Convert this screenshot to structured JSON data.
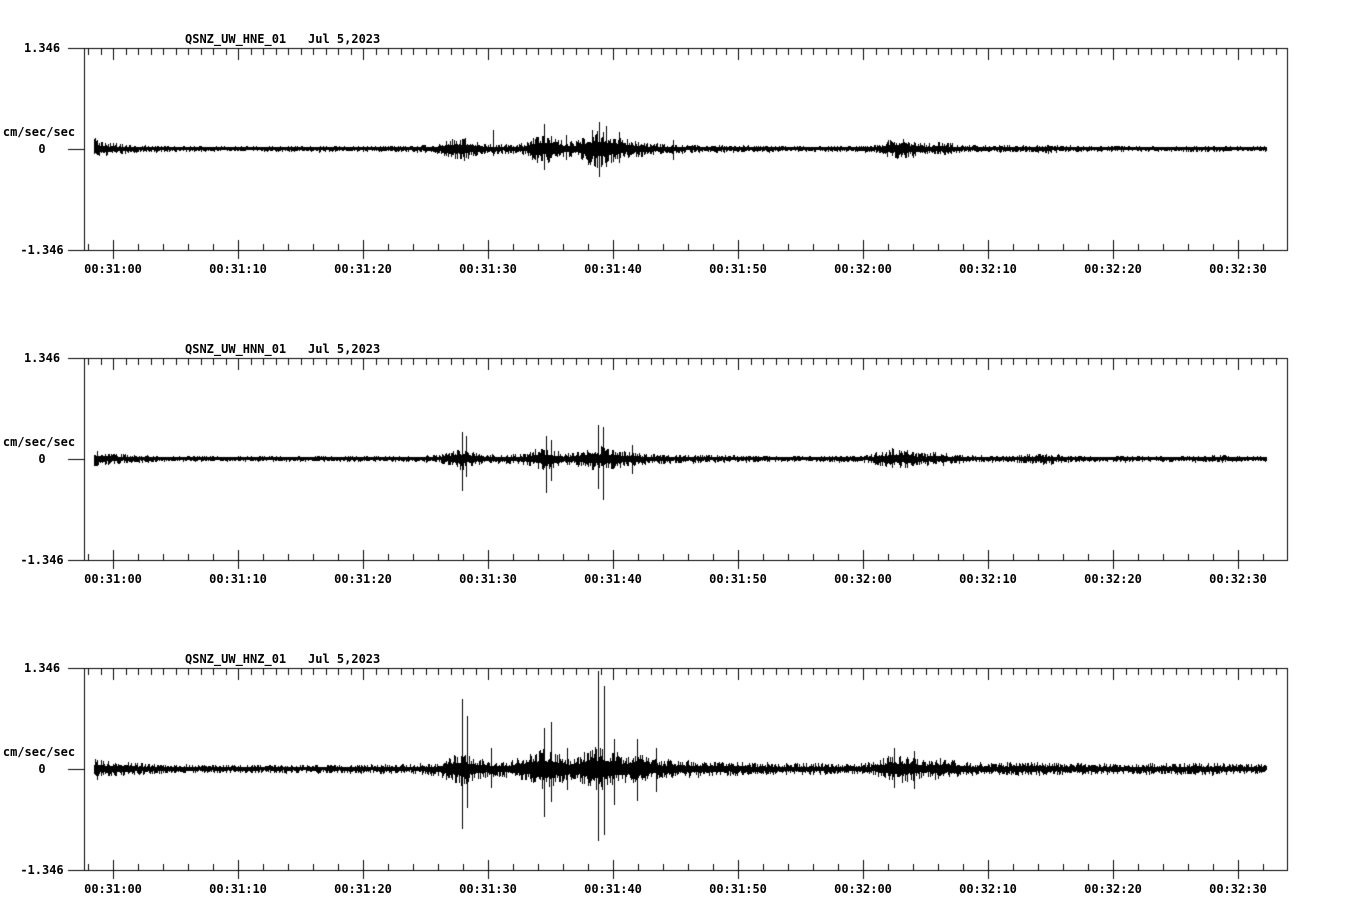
{
  "colors": {
    "ink": "#000000",
    "paper": "#ffffff"
  },
  "chart_data": [
    {
      "type": "line",
      "subtype": "seismogram",
      "title": "QSNZ_UW_HNE_01",
      "date_label": "Jul 5,2023",
      "ylabel_unit": "cm/sec/sec",
      "y_tick_labels": [
        "1.346",
        "0",
        "-1.346"
      ],
      "ylim": [
        -1.346,
        1.346
      ],
      "x_tick_labels": [
        "00:31:00",
        "00:31:10",
        "00:31:20",
        "00:31:30",
        "00:31:40",
        "00:31:50",
        "00:32:00",
        "00:32:10",
        "00:32:20",
        "00:32:30"
      ],
      "x_major_ticks_sec": [
        0,
        10,
        20,
        30,
        40,
        50,
        60,
        70,
        80,
        90
      ],
      "x_minor_step_top_sec": 1,
      "x_minor_step_bottom_sec": 2,
      "x_axis_range_sec": [
        -2.3,
        93.9
      ],
      "trace_time_range_sec": [
        -1.5,
        92.2
      ],
      "grid": false,
      "envelope_cm_s2": [
        [
          -1.5,
          0.14
        ],
        [
          -1.0,
          0.1
        ],
        [
          0,
          0.08
        ],
        [
          2,
          0.05
        ],
        [
          4,
          0.04
        ],
        [
          8,
          0.035
        ],
        [
          14,
          0.04
        ],
        [
          20,
          0.04
        ],
        [
          24,
          0.045
        ],
        [
          26,
          0.06
        ],
        [
          26.8,
          0.13
        ],
        [
          28,
          0.15
        ],
        [
          29,
          0.09
        ],
        [
          30,
          0.07
        ],
        [
          31,
          0.06
        ],
        [
          32,
          0.06
        ],
        [
          33,
          0.09
        ],
        [
          33.8,
          0.18
        ],
        [
          35,
          0.2
        ],
        [
          36,
          0.11
        ],
        [
          37,
          0.1
        ],
        [
          38,
          0.22
        ],
        [
          39,
          0.25
        ],
        [
          40,
          0.16
        ],
        [
          41,
          0.13
        ],
        [
          42,
          0.11
        ],
        [
          43,
          0.08
        ],
        [
          45,
          0.06
        ],
        [
          47,
          0.05
        ],
        [
          50,
          0.045
        ],
        [
          55,
          0.04
        ],
        [
          58,
          0.04
        ],
        [
          61,
          0.05
        ],
        [
          62,
          0.12
        ],
        [
          63,
          0.13
        ],
        [
          64,
          0.11
        ],
        [
          65,
          0.07
        ],
        [
          66,
          0.09
        ],
        [
          67,
          0.08
        ],
        [
          68,
          0.05
        ],
        [
          70,
          0.045
        ],
        [
          73,
          0.05
        ],
        [
          75,
          0.06
        ],
        [
          76,
          0.045
        ],
        [
          80,
          0.04
        ],
        [
          84,
          0.035
        ],
        [
          87,
          0.045
        ],
        [
          89,
          0.04
        ],
        [
          92.2,
          0.035
        ]
      ],
      "spikes_cm_s2": [
        [
          30.4,
          0.25,
          0.1
        ],
        [
          34.5,
          0.33,
          0.28
        ],
        [
          36.2,
          0.18,
          0.15
        ],
        [
          38.9,
          0.36,
          0.37
        ],
        [
          39.4,
          0.3,
          0.25
        ],
        [
          40.5,
          0.23,
          0.18
        ],
        [
          44.8,
          0.12,
          0.14
        ]
      ]
    },
    {
      "type": "line",
      "subtype": "seismogram",
      "title": "QSNZ_UW_HNN_01",
      "date_label": "Jul 5,2023",
      "ylabel_unit": "cm/sec/sec",
      "y_tick_labels": [
        "1.346",
        "0",
        "-1.346"
      ],
      "ylim": [
        -1.346,
        1.346
      ],
      "x_tick_labels": [
        "00:31:00",
        "00:31:10",
        "00:31:20",
        "00:31:30",
        "00:31:40",
        "00:31:50",
        "00:32:00",
        "00:32:10",
        "00:32:20",
        "00:32:30"
      ],
      "x_major_ticks_sec": [
        0,
        10,
        20,
        30,
        40,
        50,
        60,
        70,
        80,
        90
      ],
      "x_minor_step_top_sec": 1,
      "x_minor_step_bottom_sec": 2,
      "x_axis_range_sec": [
        -2.3,
        93.9
      ],
      "trace_time_range_sec": [
        -1.5,
        92.2
      ],
      "grid": false,
      "envelope_cm_s2": [
        [
          -1.5,
          0.12
        ],
        [
          -1.0,
          0.09
        ],
        [
          0,
          0.07
        ],
        [
          2,
          0.05
        ],
        [
          4,
          0.04
        ],
        [
          10,
          0.035
        ],
        [
          20,
          0.04
        ],
        [
          24,
          0.04
        ],
        [
          26,
          0.05
        ],
        [
          27,
          0.1
        ],
        [
          27.9,
          0.16
        ],
        [
          28.5,
          0.1
        ],
        [
          29.5,
          0.07
        ],
        [
          31,
          0.06
        ],
        [
          33,
          0.08
        ],
        [
          34,
          0.14
        ],
        [
          35,
          0.13
        ],
        [
          36,
          0.08
        ],
        [
          37,
          0.09
        ],
        [
          38,
          0.13
        ],
        [
          39,
          0.16
        ],
        [
          40,
          0.13
        ],
        [
          41,
          0.1
        ],
        [
          42,
          0.09
        ],
        [
          43,
          0.07
        ],
        [
          45,
          0.06
        ],
        [
          48,
          0.05
        ],
        [
          52,
          0.04
        ],
        [
          56,
          0.04
        ],
        [
          60,
          0.045
        ],
        [
          61.5,
          0.1
        ],
        [
          62.5,
          0.13
        ],
        [
          63.5,
          0.11
        ],
        [
          64.5,
          0.08
        ],
        [
          65.5,
          0.09
        ],
        [
          66.5,
          0.08
        ],
        [
          67.5,
          0.06
        ],
        [
          69,
          0.05
        ],
        [
          72,
          0.045
        ],
        [
          74.5,
          0.08
        ],
        [
          75.5,
          0.06
        ],
        [
          77,
          0.045
        ],
        [
          82,
          0.04
        ],
        [
          86,
          0.04
        ],
        [
          89,
          0.05
        ],
        [
          90,
          0.04
        ],
        [
          92.2,
          0.035
        ]
      ],
      "spikes_cm_s2": [
        [
          27.9,
          0.36,
          0.42
        ],
        [
          28.2,
          0.3,
          0.25
        ],
        [
          34.6,
          0.3,
          0.46
        ],
        [
          35.0,
          0.25,
          0.3
        ],
        [
          38.8,
          0.45,
          0.4
        ],
        [
          39.2,
          0.42,
          0.55
        ],
        [
          41.5,
          0.18,
          0.2
        ],
        [
          62.3,
          0.14,
          0.12
        ]
      ]
    },
    {
      "type": "line",
      "subtype": "seismogram",
      "title": "QSNZ_UW_HNZ_01",
      "date_label": "Jul 5,2023",
      "ylabel_unit": "cm/sec/sec",
      "y_tick_labels": [
        "1.346",
        "0",
        "-1.346"
      ],
      "ylim": [
        -1.346,
        1.346
      ],
      "x_tick_labels": [
        "00:31:00",
        "00:31:10",
        "00:31:20",
        "00:31:30",
        "00:31:40",
        "00:31:50",
        "00:32:00",
        "00:32:10",
        "00:32:20",
        "00:32:30"
      ],
      "x_major_ticks_sec": [
        0,
        10,
        20,
        30,
        40,
        50,
        60,
        70,
        80,
        90
      ],
      "x_minor_step_top_sec": 1,
      "x_minor_step_bottom_sec": 2,
      "x_axis_range_sec": [
        -2.3,
        93.9
      ],
      "trace_time_range_sec": [
        -1.5,
        92.2
      ],
      "grid": false,
      "envelope_cm_s2": [
        [
          -1.5,
          0.15
        ],
        [
          -1.0,
          0.12
        ],
        [
          0,
          0.1
        ],
        [
          2,
          0.08
        ],
        [
          4,
          0.06
        ],
        [
          8,
          0.055
        ],
        [
          12,
          0.05
        ],
        [
          16,
          0.055
        ],
        [
          20,
          0.06
        ],
        [
          23,
          0.065
        ],
        [
          25,
          0.07
        ],
        [
          26,
          0.09
        ],
        [
          27,
          0.17
        ],
        [
          28,
          0.22
        ],
        [
          29,
          0.14
        ],
        [
          30,
          0.12
        ],
        [
          31,
          0.1
        ],
        [
          32,
          0.12
        ],
        [
          33,
          0.16
        ],
        [
          34,
          0.25
        ],
        [
          35,
          0.26
        ],
        [
          36,
          0.16
        ],
        [
          37,
          0.14
        ],
        [
          38,
          0.24
        ],
        [
          39,
          0.3
        ],
        [
          40,
          0.22
        ],
        [
          41,
          0.18
        ],
        [
          42,
          0.22
        ],
        [
          43,
          0.14
        ],
        [
          44,
          0.12
        ],
        [
          46,
          0.11
        ],
        [
          48,
          0.1
        ],
        [
          50,
          0.09
        ],
        [
          53,
          0.08
        ],
        [
          56,
          0.075
        ],
        [
          59,
          0.07
        ],
        [
          61,
          0.09
        ],
        [
          62,
          0.17
        ],
        [
          63,
          0.18
        ],
        [
          64,
          0.15
        ],
        [
          65,
          0.11
        ],
        [
          66,
          0.14
        ],
        [
          67,
          0.13
        ],
        [
          68,
          0.09
        ],
        [
          70,
          0.08
        ],
        [
          72,
          0.085
        ],
        [
          74,
          0.09
        ],
        [
          76,
          0.08
        ],
        [
          78,
          0.075
        ],
        [
          81,
          0.07
        ],
        [
          84,
          0.07
        ],
        [
          86,
          0.075
        ],
        [
          88,
          0.08
        ],
        [
          90,
          0.07
        ],
        [
          92.2,
          0.06
        ]
      ],
      "spikes_cm_s2": [
        [
          27.9,
          0.93,
          0.8
        ],
        [
          28.3,
          0.7,
          0.52
        ],
        [
          30.2,
          0.28,
          0.25
        ],
        [
          34.5,
          0.55,
          0.63
        ],
        [
          35.0,
          0.62,
          0.45
        ],
        [
          36.3,
          0.28,
          0.28
        ],
        [
          38.8,
          1.3,
          0.96
        ],
        [
          39.3,
          1.1,
          0.88
        ],
        [
          40.1,
          0.4,
          0.48
        ],
        [
          41.9,
          0.4,
          0.42
        ],
        [
          43.4,
          0.28,
          0.3
        ],
        [
          62.5,
          0.28,
          0.25
        ],
        [
          64.1,
          0.24,
          0.26
        ]
      ]
    }
  ]
}
